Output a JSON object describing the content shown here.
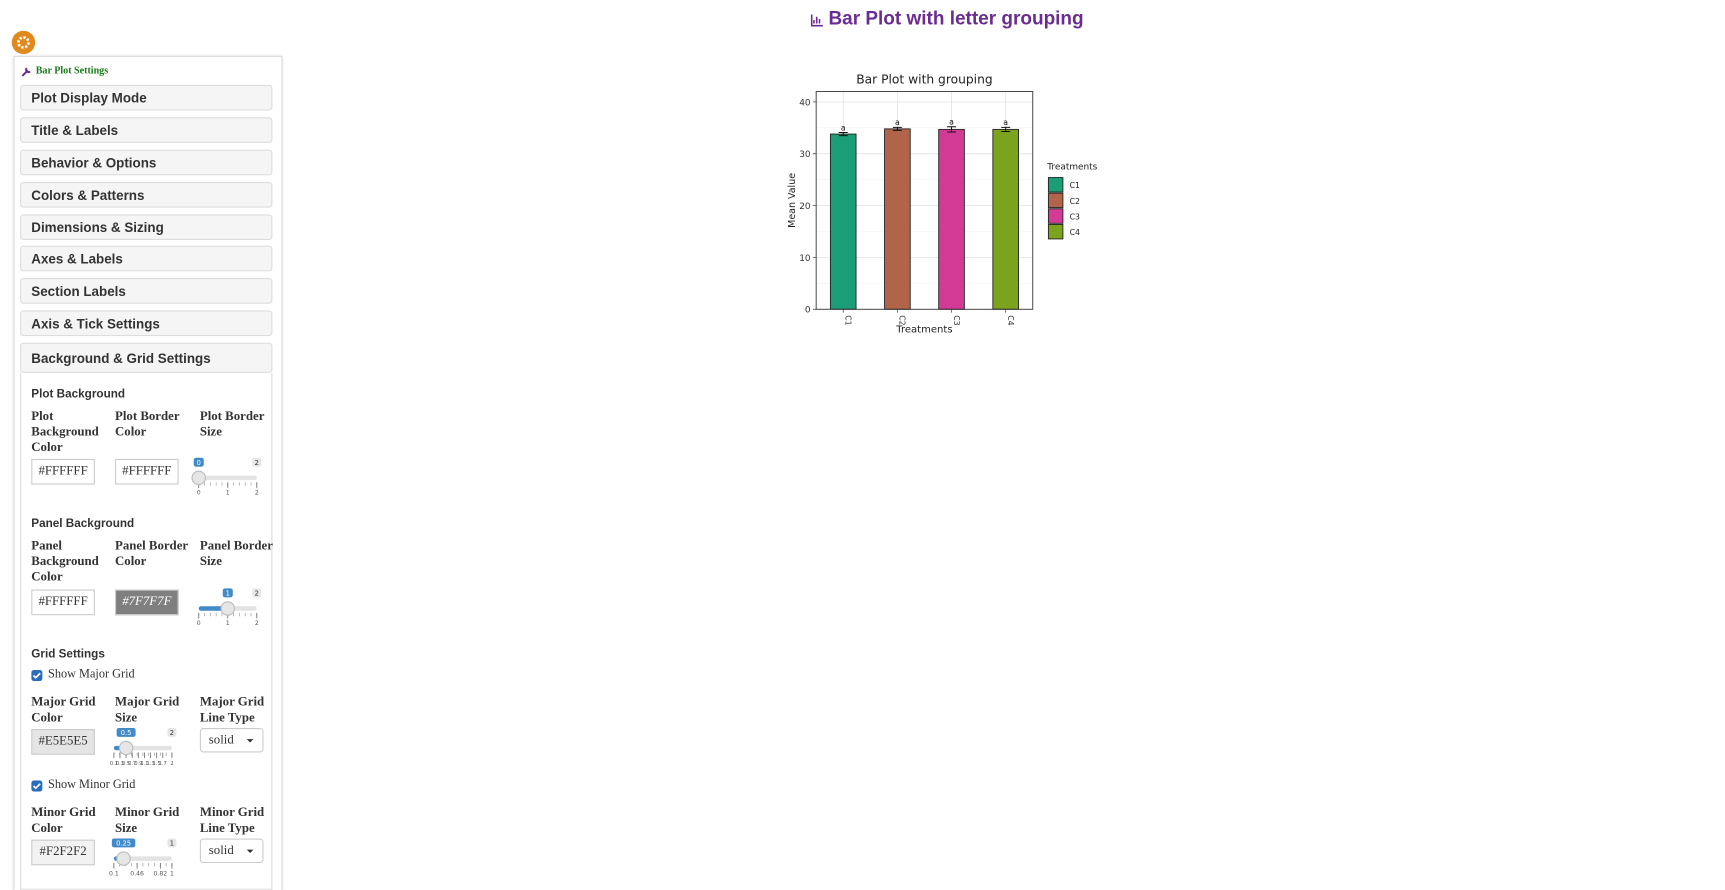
{
  "header": {
    "title": "Bar Plot with letter grouping"
  },
  "sidebar": {
    "title": "Bar Plot Settings",
    "sections": [
      "Plot Display Mode",
      "Title & Labels",
      "Behavior & Options",
      "Colors & Patterns",
      "Dimensions & Sizing",
      "Axes & Labels",
      "Section Labels",
      "Axis & Tick Settings",
      "Background & Grid Settings"
    ],
    "groups": [
      {
        "heading": "Plot Background",
        "fields": [
          {
            "label": "Plot Background Color",
            "value": "#FFFFFF"
          },
          {
            "label": "Plot Border Color",
            "value": "#FFFFFF"
          },
          {
            "label": "Plot Border Size",
            "max": 2,
            "value": 0,
            "ticks": [
              0,
              1,
              2
            ]
          }
        ]
      },
      {
        "heading": "Panel Background",
        "fields": [
          {
            "label": "Panel Background Color",
            "value": "#FFFFFF"
          },
          {
            "label": "Panel Border Color",
            "value": "#7F7F7F"
          },
          {
            "label": "Panel Border Size",
            "max": 2,
            "value": 1,
            "ticks": [
              0,
              1,
              2
            ]
          }
        ]
      },
      {
        "heading": "Grid Settings",
        "checkbox": "Show Major Grid",
        "checked": true,
        "fields": [
          {
            "label": "Major Grid Color",
            "value": "#E5E5E5"
          },
          {
            "label": "Major Grid Size",
            "max": 2,
            "value": 0.5,
            "ticks": [
              0.1,
              0.3,
              0.5,
              0.7,
              0.9,
              1.1,
              1.3,
              1.5,
              1.7,
              2
            ]
          },
          {
            "label": "Major Grid Line Type",
            "select": "solid"
          }
        ]
      },
      {
        "checkbox": "Show Minor Grid",
        "checked": true,
        "fields": [
          {
            "label": "Minor Grid Color",
            "value": "#F2F2F2"
          },
          {
            "label": "Minor Grid Size",
            "max": 1,
            "value": 0.25,
            "ticks": [
              0.1,
              0.46,
              0.82,
              1
            ]
          },
          {
            "label": "Minor Grid Line Type",
            "select": "solid"
          }
        ]
      }
    ]
  },
  "chart_data": {
    "type": "bar",
    "title": "Bar Plot with grouping",
    "x_label": "Treatments",
    "y_label": "Mean Value",
    "legend_title": "Treatments",
    "categories": [
      "C1",
      "C2",
      "C3",
      "C4"
    ],
    "values": [
      33.8,
      34.8,
      34.7,
      34.7
    ],
    "errors": [
      0.3,
      0.3,
      0.5,
      0.4
    ],
    "letters": [
      "a",
      "a",
      "a",
      "a"
    ],
    "colors": [
      "#1B9E77",
      "#B1644A",
      "#D23A96",
      "#7CA31E"
    ],
    "ylim": [
      0,
      42
    ],
    "yticks": [
      0,
      10,
      20,
      30,
      40
    ],
    "grid": true,
    "minor_grid": true
  }
}
